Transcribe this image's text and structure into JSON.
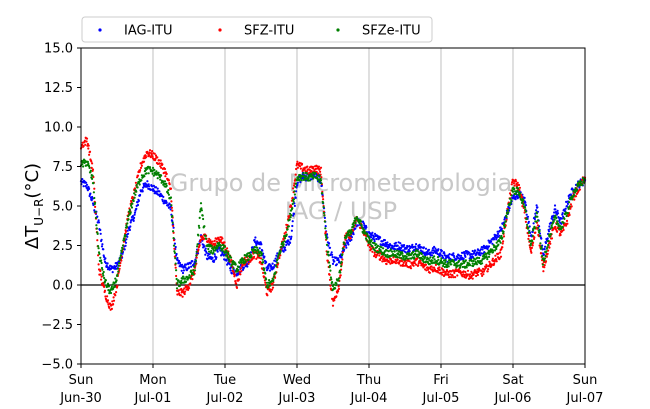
{
  "chart_data": {
    "type": "scatter",
    "ylabel": "ΔT",
    "ylabel_subscript": "U−R",
    "ylabel_unit": "(°C)",
    "ylim": [
      -5.0,
      15.0
    ],
    "yticks": [
      -5.0,
      -2.5,
      0.0,
      2.5,
      5.0,
      7.5,
      10.0,
      12.5,
      15.0
    ],
    "ytick_labels": [
      "−5.0",
      "−2.5",
      "0.0",
      "2.5",
      "5.0",
      "7.5",
      "10.0",
      "12.5",
      "15.0"
    ],
    "xlim": [
      0,
      168
    ],
    "xticks": [
      {
        "hour": 0,
        "day": "Sun",
        "date": "Jun-30"
      },
      {
        "hour": 24,
        "day": "Mon",
        "date": "Jul-01"
      },
      {
        "hour": 48,
        "day": "Tue",
        "date": "Jul-02"
      },
      {
        "hour": 72,
        "day": "Wed",
        "date": "Jul-03"
      },
      {
        "hour": 96,
        "day": "Thu",
        "date": "Jul-04"
      },
      {
        "hour": 120,
        "day": "Fri",
        "date": "Jul-05"
      },
      {
        "hour": 144,
        "day": "Sat",
        "date": "Jul-06"
      },
      {
        "hour": 168,
        "day": "Sun",
        "date": "Jul-07"
      }
    ],
    "grid_x": true,
    "zero_line": 0,
    "legend_position": "top-left, outside",
    "watermark": [
      "Grupo de Micrometeorologia",
      "IAG / USP"
    ],
    "series": [
      {
        "name": "IAG-ITU",
        "color": "#0000ff",
        "points": [
          [
            0,
            6.5
          ],
          [
            2,
            6.3
          ],
          [
            4,
            5.2
          ],
          [
            6,
            3.8
          ],
          [
            8,
            1.5
          ],
          [
            10,
            1.0
          ],
          [
            12,
            1.2
          ],
          [
            14,
            2.0
          ],
          [
            16,
            3.6
          ],
          [
            18,
            4.5
          ],
          [
            20,
            6.0
          ],
          [
            22,
            6.4
          ],
          [
            24,
            6.1
          ],
          [
            26,
            5.8
          ],
          [
            28,
            5.3
          ],
          [
            30,
            4.8
          ],
          [
            32,
            1.5
          ],
          [
            34,
            1.0
          ],
          [
            36,
            1.2
          ],
          [
            38,
            1.5
          ],
          [
            40,
            3.0
          ],
          [
            42,
            1.8
          ],
          [
            44,
            1.6
          ],
          [
            46,
            2.2
          ],
          [
            48,
            1.8
          ],
          [
            50,
            1.0
          ],
          [
            52,
            0.8
          ],
          [
            54,
            1.2
          ],
          [
            56,
            1.5
          ],
          [
            58,
            2.8
          ],
          [
            60,
            2.5
          ],
          [
            62,
            1.0
          ],
          [
            64,
            1.2
          ],
          [
            66,
            2.0
          ],
          [
            68,
            2.4
          ],
          [
            70,
            3.0
          ],
          [
            72,
            6.5
          ],
          [
            74,
            6.9
          ],
          [
            76,
            6.8
          ],
          [
            78,
            7.0
          ],
          [
            80,
            6.6
          ],
          [
            82,
            3.0
          ],
          [
            84,
            1.5
          ],
          [
            86,
            1.5
          ],
          [
            88,
            2.4
          ],
          [
            90,
            3.0
          ],
          [
            92,
            4.0
          ],
          [
            94,
            3.8
          ],
          [
            96,
            3.2
          ],
          [
            98,
            3.0
          ],
          [
            100,
            2.8
          ],
          [
            102,
            2.6
          ],
          [
            104,
            2.4
          ],
          [
            106,
            2.5
          ],
          [
            108,
            2.3
          ],
          [
            110,
            2.3
          ],
          [
            112,
            2.5
          ],
          [
            114,
            2.2
          ],
          [
            116,
            2.0
          ],
          [
            118,
            2.2
          ],
          [
            120,
            2.0
          ],
          [
            122,
            1.7
          ],
          [
            124,
            1.8
          ],
          [
            126,
            1.8
          ],
          [
            128,
            1.9
          ],
          [
            130,
            1.9
          ],
          [
            132,
            2.0
          ],
          [
            134,
            2.2
          ],
          [
            136,
            2.6
          ],
          [
            138,
            3.0
          ],
          [
            140,
            3.5
          ],
          [
            142,
            4.5
          ],
          [
            144,
            5.5
          ],
          [
            146,
            5.8
          ],
          [
            148,
            5.3
          ],
          [
            150,
            3.0
          ],
          [
            152,
            5.0
          ],
          [
            154,
            1.8
          ],
          [
            156,
            3.5
          ],
          [
            158,
            4.8
          ],
          [
            160,
            4.0
          ],
          [
            162,
            5.2
          ],
          [
            164,
            6.0
          ],
          [
            166,
            6.4
          ],
          [
            168,
            6.6
          ]
        ]
      },
      {
        "name": "SFZ-ITU",
        "color": "#ff0000",
        "points": [
          [
            0,
            8.8
          ],
          [
            2,
            9.2
          ],
          [
            4,
            7.2
          ],
          [
            6,
            1.0
          ],
          [
            8,
            -0.5
          ],
          [
            10,
            -1.5
          ],
          [
            12,
            0.0
          ],
          [
            14,
            2.5
          ],
          [
            16,
            4.6
          ],
          [
            18,
            6.0
          ],
          [
            20,
            7.6
          ],
          [
            22,
            8.4
          ],
          [
            24,
            8.2
          ],
          [
            26,
            7.8
          ],
          [
            28,
            7.2
          ],
          [
            30,
            6.0
          ],
          [
            32,
            -0.5
          ],
          [
            34,
            -0.5
          ],
          [
            36,
            0.0
          ],
          [
            38,
            1.0
          ],
          [
            40,
            3.0
          ],
          [
            42,
            3.0
          ],
          [
            44,
            2.5
          ],
          [
            46,
            3.0
          ],
          [
            48,
            2.5
          ],
          [
            50,
            1.5
          ],
          [
            52,
            0.0
          ],
          [
            54,
            1.5
          ],
          [
            56,
            1.6
          ],
          [
            58,
            2.0
          ],
          [
            60,
            1.5
          ],
          [
            62,
            -0.5
          ],
          [
            64,
            0.0
          ],
          [
            66,
            1.8
          ],
          [
            68,
            3.2
          ],
          [
            70,
            5.0
          ],
          [
            72,
            7.6
          ],
          [
            74,
            7.4
          ],
          [
            76,
            7.2
          ],
          [
            78,
            7.4
          ],
          [
            80,
            7.2
          ],
          [
            82,
            2.0
          ],
          [
            84,
            -1.2
          ],
          [
            86,
            0.0
          ],
          [
            88,
            3.0
          ],
          [
            90,
            3.2
          ],
          [
            92,
            4.2
          ],
          [
            94,
            3.5
          ],
          [
            96,
            2.5
          ],
          [
            98,
            2.0
          ],
          [
            100,
            1.8
          ],
          [
            102,
            1.5
          ],
          [
            104,
            1.6
          ],
          [
            106,
            1.5
          ],
          [
            108,
            1.4
          ],
          [
            110,
            1.3
          ],
          [
            112,
            1.5
          ],
          [
            114,
            1.2
          ],
          [
            116,
            1.0
          ],
          [
            118,
            1.1
          ],
          [
            120,
            0.9
          ],
          [
            122,
            0.7
          ],
          [
            124,
            0.7
          ],
          [
            126,
            0.8
          ],
          [
            128,
            0.7
          ],
          [
            130,
            0.6
          ],
          [
            132,
            0.8
          ],
          [
            134,
            0.8
          ],
          [
            136,
            1.2
          ],
          [
            138,
            1.6
          ],
          [
            140,
            2.0
          ],
          [
            142,
            4.5
          ],
          [
            144,
            6.6
          ],
          [
            146,
            6.2
          ],
          [
            148,
            4.5
          ],
          [
            150,
            2.0
          ],
          [
            152,
            4.0
          ],
          [
            154,
            1.0
          ],
          [
            156,
            2.5
          ],
          [
            158,
            3.8
          ],
          [
            160,
            3.2
          ],
          [
            162,
            4.0
          ],
          [
            164,
            5.5
          ],
          [
            166,
            6.2
          ],
          [
            168,
            6.8
          ]
        ]
      },
      {
        "name": "SFZe-ITU",
        "color": "#007f00",
        "points": [
          [
            0,
            7.6
          ],
          [
            2,
            7.8
          ],
          [
            4,
            6.6
          ],
          [
            6,
            2.0
          ],
          [
            8,
            0.2
          ],
          [
            10,
            -0.5
          ],
          [
            12,
            0.5
          ],
          [
            14,
            2.5
          ],
          [
            16,
            4.4
          ],
          [
            18,
            5.8
          ],
          [
            20,
            6.8
          ],
          [
            22,
            7.3
          ],
          [
            24,
            7.2
          ],
          [
            26,
            6.9
          ],
          [
            28,
            6.4
          ],
          [
            30,
            5.3
          ],
          [
            32,
            0.0
          ],
          [
            34,
            0.3
          ],
          [
            36,
            0.5
          ],
          [
            38,
            1.0
          ],
          [
            40,
            5.0
          ],
          [
            42,
            2.4
          ],
          [
            44,
            2.2
          ],
          [
            46,
            2.6
          ],
          [
            48,
            2.2
          ],
          [
            50,
            1.5
          ],
          [
            52,
            1.0
          ],
          [
            54,
            1.6
          ],
          [
            56,
            1.8
          ],
          [
            58,
            2.2
          ],
          [
            60,
            2.0
          ],
          [
            62,
            0.0
          ],
          [
            64,
            0.2
          ],
          [
            66,
            2.0
          ],
          [
            68,
            3.0
          ],
          [
            70,
            4.5
          ],
          [
            72,
            6.8
          ],
          [
            74,
            6.9
          ],
          [
            76,
            6.8
          ],
          [
            78,
            6.9
          ],
          [
            80,
            6.6
          ],
          [
            82,
            2.5
          ],
          [
            84,
            -0.3
          ],
          [
            86,
            0.5
          ],
          [
            88,
            3.0
          ],
          [
            90,
            3.3
          ],
          [
            92,
            4.4
          ],
          [
            94,
            3.5
          ],
          [
            96,
            2.8
          ],
          [
            98,
            2.4
          ],
          [
            100,
            2.2
          ],
          [
            102,
            2.0
          ],
          [
            104,
            2.0
          ],
          [
            106,
            1.9
          ],
          [
            108,
            1.8
          ],
          [
            110,
            1.8
          ],
          [
            112,
            2.0
          ],
          [
            114,
            1.7
          ],
          [
            116,
            1.5
          ],
          [
            118,
            1.6
          ],
          [
            120,
            1.5
          ],
          [
            122,
            1.3
          ],
          [
            124,
            1.4
          ],
          [
            126,
            1.3
          ],
          [
            128,
            1.3
          ],
          [
            130,
            1.4
          ],
          [
            132,
            1.5
          ],
          [
            134,
            1.6
          ],
          [
            136,
            2.0
          ],
          [
            138,
            2.4
          ],
          [
            140,
            2.8
          ],
          [
            142,
            4.5
          ],
          [
            144,
            6.0
          ],
          [
            146,
            5.9
          ],
          [
            148,
            4.8
          ],
          [
            150,
            2.5
          ],
          [
            152,
            4.5
          ],
          [
            154,
            1.4
          ],
          [
            156,
            3.0
          ],
          [
            158,
            4.2
          ],
          [
            160,
            3.6
          ],
          [
            162,
            4.6
          ],
          [
            164,
            5.8
          ],
          [
            166,
            6.3
          ],
          [
            168,
            6.7
          ]
        ]
      }
    ]
  }
}
